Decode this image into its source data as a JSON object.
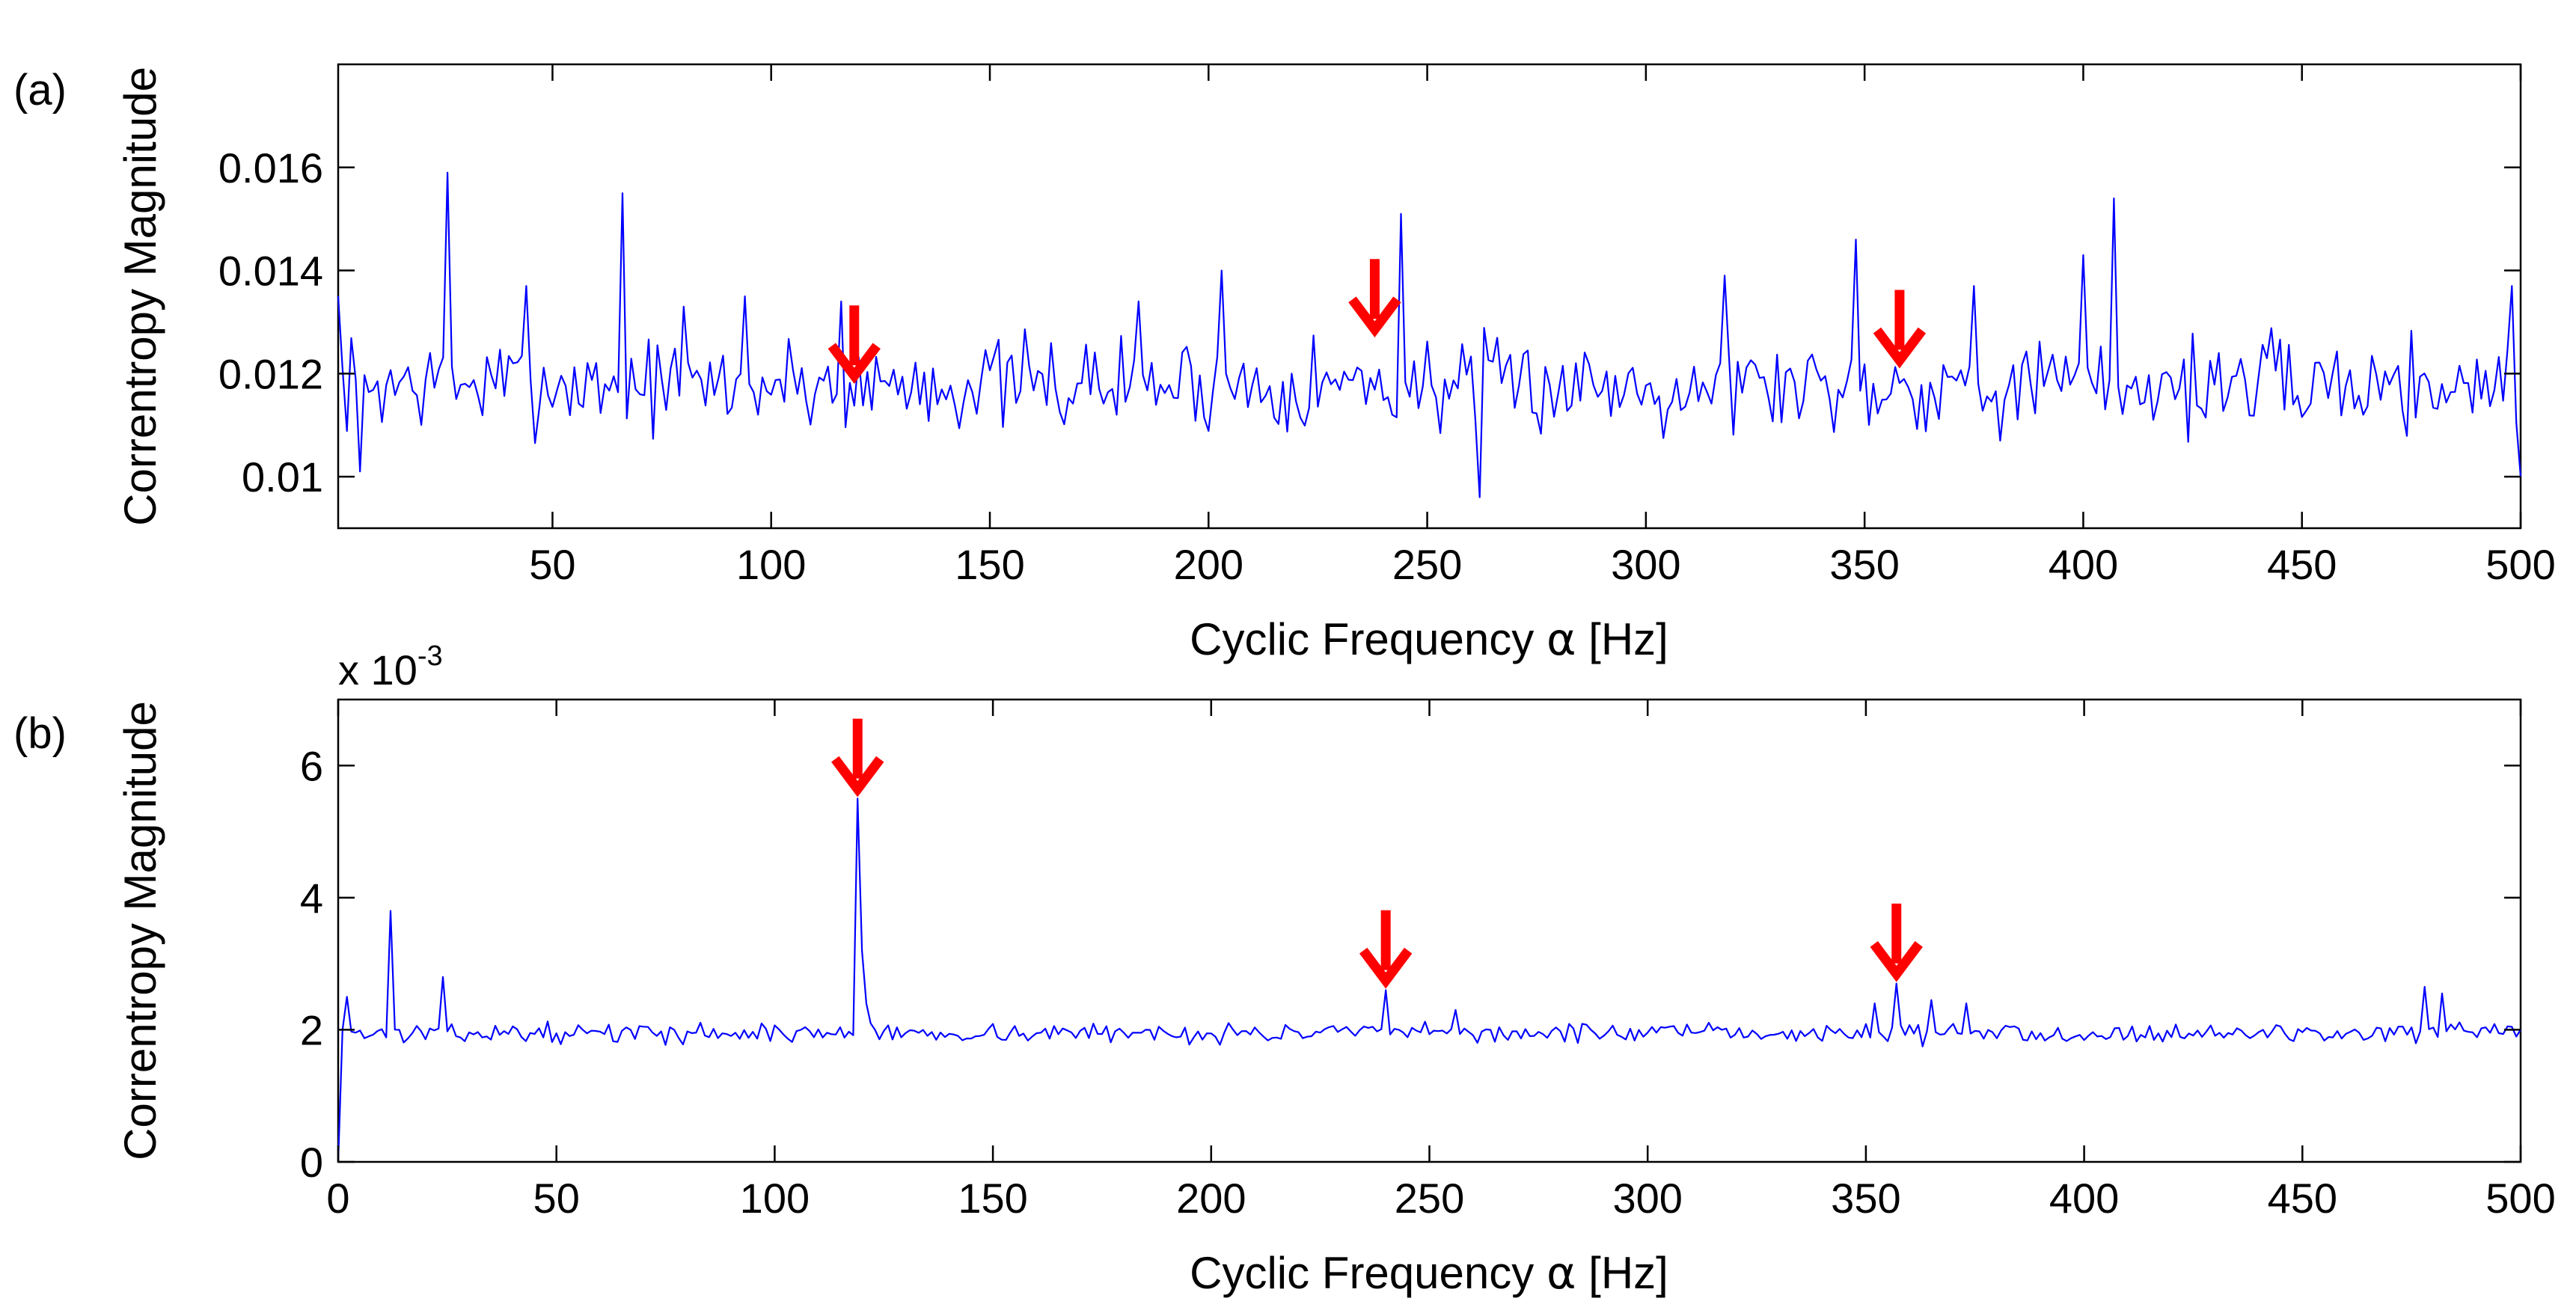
{
  "colors": {
    "series": "#0000ff",
    "arrow": "#ff0000",
    "axis": "#000000",
    "background": "#ffffff"
  },
  "chart_data": [
    {
      "type": "line",
      "panel_label": "(a)",
      "xlabel_prefix": "Cyclic Frequency ",
      "xlabel_symbol": "α",
      "xlabel_suffix": " [Hz]",
      "ylabel": "Correntropy Magnitude",
      "xlim": [
        1,
        500
      ],
      "ylim": [
        0.009,
        0.018
      ],
      "xticks": [
        50,
        100,
        150,
        200,
        250,
        300,
        350,
        400,
        450,
        500
      ],
      "xtick_labels": [
        "50",
        "100",
        "150",
        "200",
        "250",
        "300",
        "350",
        "400",
        "450",
        "500"
      ],
      "yticks": [
        0.01,
        0.012,
        0.014,
        0.016
      ],
      "ytick_labels": [
        "0.01",
        "0.012",
        "0.014",
        "0.016"
      ],
      "exponent_label": null,
      "arrows": [
        {
          "x": 119,
          "y": 0.0119
        },
        {
          "x": 238,
          "y": 0.0128
        },
        {
          "x": 358,
          "y": 0.0122
        }
      ],
      "series": [
        {
          "name": "correntropy",
          "baseline": 0.0118,
          "noise": 0.0009,
          "seed": 7,
          "peaks": [
            {
              "x": 1,
              "y": 0.0135
            },
            {
              "x": 6,
              "y": 0.0101
            },
            {
              "x": 26,
              "y": 0.0159
            },
            {
              "x": 44,
              "y": 0.0137
            },
            {
              "x": 66,
              "y": 0.0155
            },
            {
              "x": 80,
              "y": 0.0133
            },
            {
              "x": 94,
              "y": 0.0135
            },
            {
              "x": 116,
              "y": 0.0134
            },
            {
              "x": 184,
              "y": 0.0134
            },
            {
              "x": 203,
              "y": 0.014
            },
            {
              "x": 244,
              "y": 0.0151
            },
            {
              "x": 262,
              "y": 0.0096
            },
            {
              "x": 318,
              "y": 0.0139
            },
            {
              "x": 348,
              "y": 0.0146
            },
            {
              "x": 375,
              "y": 0.0137
            },
            {
              "x": 400,
              "y": 0.0143
            },
            {
              "x": 407,
              "y": 0.0154
            },
            {
              "x": 498,
              "y": 0.0137
            },
            {
              "x": 500,
              "y": 0.01
            }
          ]
        }
      ]
    },
    {
      "type": "line",
      "panel_label": "(b)",
      "xlabel_prefix": "Cyclic Frequency ",
      "xlabel_symbol": "α",
      "xlabel_suffix": " [Hz]",
      "ylabel": "Correntropy Magnitude",
      "xlim": [
        0,
        500
      ],
      "ylim": [
        0,
        7
      ],
      "xticks": [
        0,
        50,
        100,
        150,
        200,
        250,
        300,
        350,
        400,
        450,
        500
      ],
      "xtick_labels": [
        "0",
        "50",
        "100",
        "150",
        "200",
        "250",
        "300",
        "350",
        "400",
        "450",
        "500"
      ],
      "yticks": [
        0,
        2,
        4,
        6
      ],
      "ytick_labels": [
        "0",
        "2",
        "4",
        "6"
      ],
      "exponent_label": {
        "base": "x 10",
        "power": "-3"
      },
      "arrows": [
        {
          "x": 119,
          "y": 5.6
        },
        {
          "x": 240,
          "y": 2.7
        },
        {
          "x": 357,
          "y": 2.8
        }
      ],
      "series": [
        {
          "name": "correntropy",
          "baseline": 1.95,
          "noise": 0.14,
          "seed": 13,
          "peaks": [
            {
              "x": 0,
              "y": 0.0
            },
            {
              "x": 1,
              "y": 2.0
            },
            {
              "x": 2,
              "y": 2.5
            },
            {
              "x": 12,
              "y": 3.8
            },
            {
              "x": 24,
              "y": 2.8
            },
            {
              "x": 119,
              "y": 5.5
            },
            {
              "x": 120,
              "y": 3.2
            },
            {
              "x": 121,
              "y": 2.4
            },
            {
              "x": 240,
              "y": 2.6
            },
            {
              "x": 256,
              "y": 2.3
            },
            {
              "x": 352,
              "y": 2.4
            },
            {
              "x": 357,
              "y": 2.7
            },
            {
              "x": 365,
              "y": 2.45
            },
            {
              "x": 373,
              "y": 2.4
            },
            {
              "x": 478,
              "y": 2.65
            },
            {
              "x": 482,
              "y": 2.55
            },
            {
              "x": 500,
              "y": 2.0
            }
          ]
        }
      ]
    }
  ]
}
